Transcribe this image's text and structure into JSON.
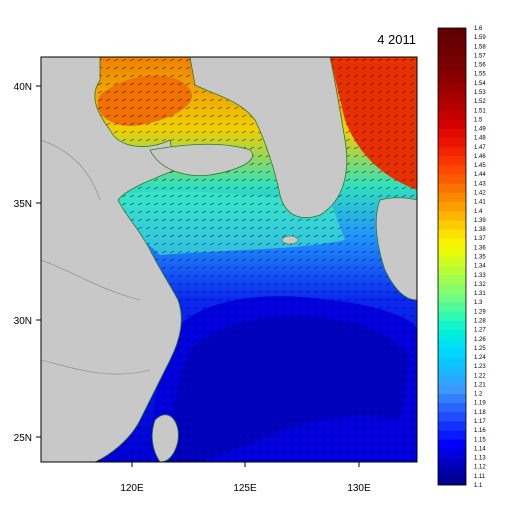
{
  "title": "4 2011",
  "map": {
    "lon_range": [
      116,
      132.5
    ],
    "lat_range": [
      24,
      41
    ],
    "x_ticks": [
      {
        "value": 120,
        "label": "120E"
      },
      {
        "value": 125,
        "label": "125E"
      },
      {
        "value": 130,
        "label": "130E"
      }
    ],
    "y_ticks": [
      {
        "value": 25,
        "label": "25N"
      },
      {
        "value": 30,
        "label": "30N"
      },
      {
        "value": 35,
        "label": "35N"
      },
      {
        "value": 40,
        "label": "40N"
      }
    ],
    "land_color": "#c8c8c8",
    "coast_color": "#2e7a2e",
    "border_color": "#888888",
    "vector_color": "#000000"
  },
  "colorbar": {
    "labels": [
      "1.1",
      "1.11",
      "1.12",
      "1.13",
      "1.14",
      "1.15",
      "1.16",
      "1.17",
      "1.18",
      "1.19",
      "1.2",
      "1.21",
      "1.22",
      "1.23",
      "1.24",
      "1.25",
      "1.26",
      "1.27",
      "1.28",
      "1.29",
      "1.3",
      "1.31",
      "1.32",
      "1.33",
      "1.34",
      "1.35",
      "1.36",
      "1.37",
      "1.38",
      "1.39",
      "1.4",
      "1.41",
      "1.42",
      "1.43",
      "1.44",
      "1.45",
      "1.46",
      "1.47",
      "1.48",
      "1.49",
      "1.5",
      "1.51",
      "1.52",
      "1.53",
      "1.54",
      "1.55",
      "1.56",
      "1.57",
      "1.58",
      "1.59",
      "1.6"
    ],
    "colors": [
      "#00008f",
      "#0000a8",
      "#0000c4",
      "#0000e0",
      "#0000ff",
      "#0a1aff",
      "#1432ff",
      "#1e4cff",
      "#2866ff",
      "#3280ff",
      "#3c99ff",
      "#2aa8ff",
      "#1ab8ff",
      "#0ac8ff",
      "#00d6ff",
      "#00e2ef",
      "#00eede",
      "#10f6c8",
      "#30f8b0",
      "#50fa98",
      "#70fc80",
      "#88fc68",
      "#a0fc50",
      "#b8fc38",
      "#d0fc20",
      "#e8fc0a",
      "#f8f400",
      "#fce000",
      "#fcca00",
      "#fcb400",
      "#fc9e00",
      "#fc8800",
      "#fc7200",
      "#fc5c00",
      "#fc4800",
      "#fc3400",
      "#f42400",
      "#ea1400",
      "#e00a00",
      "#d20000",
      "#c40000",
      "#b40000",
      "#a80000",
      "#9a0000",
      "#8e0000",
      "#800000",
      "#780000",
      "#700000",
      "#680000",
      "#600000"
    ]
  }
}
